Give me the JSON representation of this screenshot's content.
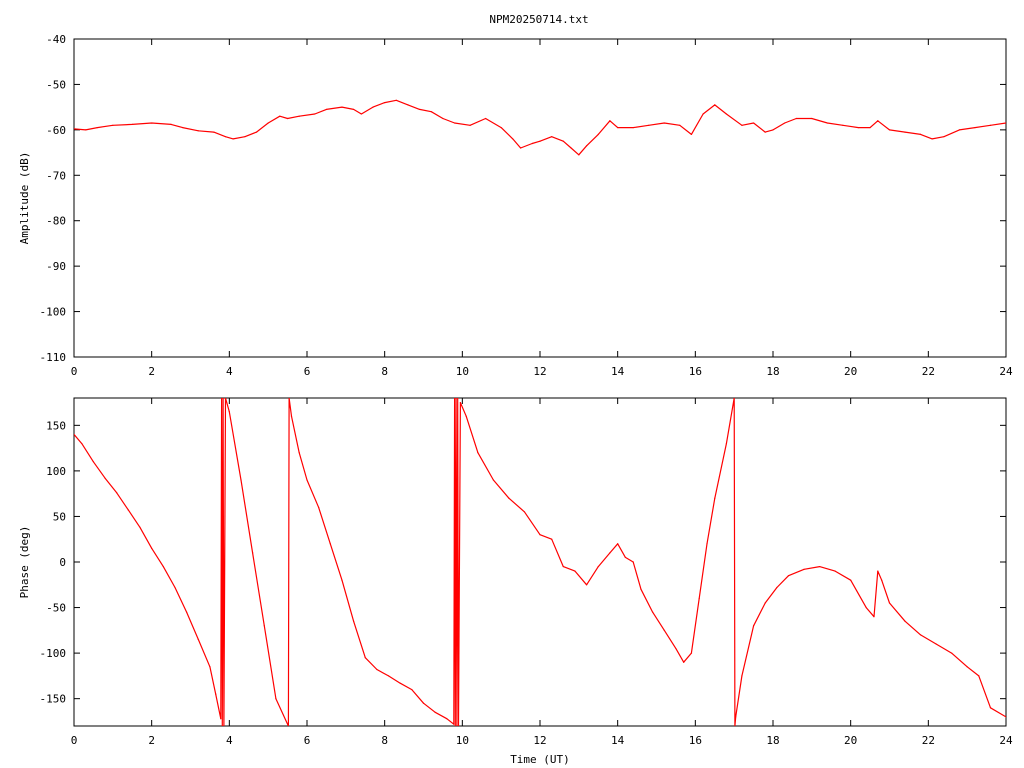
{
  "title": "NPM20250714.txt",
  "colors": {
    "trace": "#ff0000",
    "frame": "#000000",
    "background": "#ffffff"
  },
  "chart_data": [
    {
      "type": "line",
      "title": "NPM20250714.txt",
      "xlabel": "",
      "ylabel": "Amplitude (dB)",
      "xlim": [
        0,
        24
      ],
      "ylim": [
        -110,
        -40
      ],
      "xticks": [
        0,
        2,
        4,
        6,
        8,
        10,
        12,
        14,
        16,
        18,
        20,
        22,
        24
      ],
      "yticks": [
        -40,
        -50,
        -60,
        -70,
        -80,
        -90,
        -100,
        -110
      ],
      "grid": false,
      "series": [
        {
          "x": [
            0,
            0.3,
            0.6,
            1.0,
            1.5,
            2.0,
            2.5,
            2.8,
            3.2,
            3.6,
            3.9,
            4.1,
            4.4,
            4.7,
            5.0,
            5.3,
            5.5,
            5.8,
            6.2,
            6.5,
            6.9,
            7.2,
            7.4,
            7.7,
            8.0,
            8.3,
            8.6,
            8.9,
            9.2,
            9.5,
            9.8,
            10.2,
            10.6,
            11.0,
            11.3,
            11.5,
            11.8,
            12.0,
            12.3,
            12.6,
            12.8,
            13.0,
            13.2,
            13.5,
            13.8,
            14.0,
            14.4,
            14.8,
            15.2,
            15.6,
            15.9,
            16.2,
            16.5,
            16.8,
            17.2,
            17.5,
            17.8,
            18.0,
            18.3,
            18.6,
            19.0,
            19.4,
            19.8,
            20.2,
            20.5,
            20.7,
            21.0,
            21.4,
            21.8,
            22.1,
            22.4,
            22.8,
            23.2,
            23.6,
            24.0
          ],
          "y": [
            -59.8,
            -60.0,
            -59.5,
            -59.0,
            -58.8,
            -58.5,
            -58.8,
            -59.5,
            -60.2,
            -60.5,
            -61.5,
            -62.0,
            -61.5,
            -60.5,
            -58.5,
            -57.0,
            -57.5,
            -57.0,
            -56.5,
            -55.5,
            -55.0,
            -55.5,
            -56.5,
            -55.0,
            -54.0,
            -53.5,
            -54.5,
            -55.5,
            -56.0,
            -57.5,
            -58.5,
            -59.0,
            -57.5,
            -59.5,
            -62.0,
            -64.0,
            -63.0,
            -62.5,
            -61.5,
            -62.5,
            -64.0,
            -65.5,
            -63.5,
            -61.0,
            -58.0,
            -59.5,
            -59.5,
            -59.0,
            -58.5,
            -59.0,
            -61.0,
            -56.5,
            -54.5,
            -56.5,
            -59.0,
            -58.5,
            -60.5,
            -60.0,
            -58.5,
            -57.5,
            -57.5,
            -58.5,
            -59.0,
            -59.5,
            -59.5,
            -58.0,
            -60.0,
            -60.5,
            -61.0,
            -62.0,
            -61.5,
            -60.0,
            -59.5,
            -59.0,
            -58.5
          ]
        }
      ]
    },
    {
      "type": "line",
      "title": "",
      "xlabel": "Time (UT)",
      "ylabel": "Phase (deg)",
      "xlim": [
        0,
        24
      ],
      "ylim": [
        -180,
        180
      ],
      "xticks": [
        0,
        2,
        4,
        6,
        8,
        10,
        12,
        14,
        16,
        18,
        20,
        22,
        24
      ],
      "yticks": [
        150,
        100,
        50,
        0,
        -50,
        -100,
        -150
      ],
      "grid": false,
      "series": [
        {
          "x": [
            0,
            0.2,
            0.5,
            0.8,
            1.1,
            1.4,
            1.7,
            2.0,
            2.3,
            2.6,
            2.9,
            3.2,
            3.5,
            3.65,
            3.78,
            3.8,
            3.82,
            3.84,
            3.86,
            3.9,
            4.0,
            4.3,
            4.6,
            4.9,
            5.2,
            5.52,
            5.54,
            5.6,
            5.8,
            6.0,
            6.3,
            6.6,
            6.9,
            7.2,
            7.5,
            7.8,
            8.1,
            8.4,
            8.7,
            9.0,
            9.3,
            9.6,
            9.78,
            9.8,
            9.82,
            9.84,
            9.86,
            9.88,
            9.9,
            9.95,
            10.1,
            10.4,
            10.8,
            11.2,
            11.6,
            12.0,
            12.3,
            12.6,
            12.9,
            13.2,
            13.5,
            13.8,
            14.0,
            14.2,
            14.4,
            14.6,
            14.9,
            15.2,
            15.5,
            15.7,
            15.9,
            16.1,
            16.3,
            16.5,
            16.8,
            17.0,
            17.02,
            17.04,
            17.2,
            17.5,
            17.8,
            18.1,
            18.4,
            18.8,
            19.2,
            19.6,
            20.0,
            20.4,
            20.6,
            20.7,
            20.8,
            21.0,
            21.4,
            21.8,
            22.2,
            22.6,
            23.0,
            23.3,
            23.6,
            24.0
          ],
          "y": [
            140,
            130,
            110,
            92,
            76,
            57,
            38,
            15,
            -5,
            -28,
            -55,
            -85,
            -115,
            -145,
            -172,
            180,
            -180,
            180,
            -180,
            180,
            165,
            90,
            10,
            -70,
            -150,
            -180,
            180,
            160,
            120,
            90,
            60,
            20,
            -20,
            -65,
            -105,
            -118,
            -125,
            -133,
            -140,
            -155,
            -165,
            -172,
            -178,
            180,
            -180,
            180,
            -180,
            180,
            -180,
            175,
            160,
            120,
            90,
            70,
            55,
            30,
            25,
            -5,
            -10,
            -25,
            -5,
            10,
            20,
            5,
            0,
            -30,
            -55,
            -75,
            -95,
            -110,
            -100,
            -40,
            20,
            70,
            130,
            180,
            -180,
            -170,
            -125,
            -70,
            -45,
            -28,
            -15,
            -8,
            -5,
            -10,
            -20,
            -50,
            -60,
            -10,
            -20,
            -45,
            -65,
            -80,
            -90,
            -100,
            -115,
            -125,
            -160,
            -170
          ]
        }
      ]
    }
  ]
}
